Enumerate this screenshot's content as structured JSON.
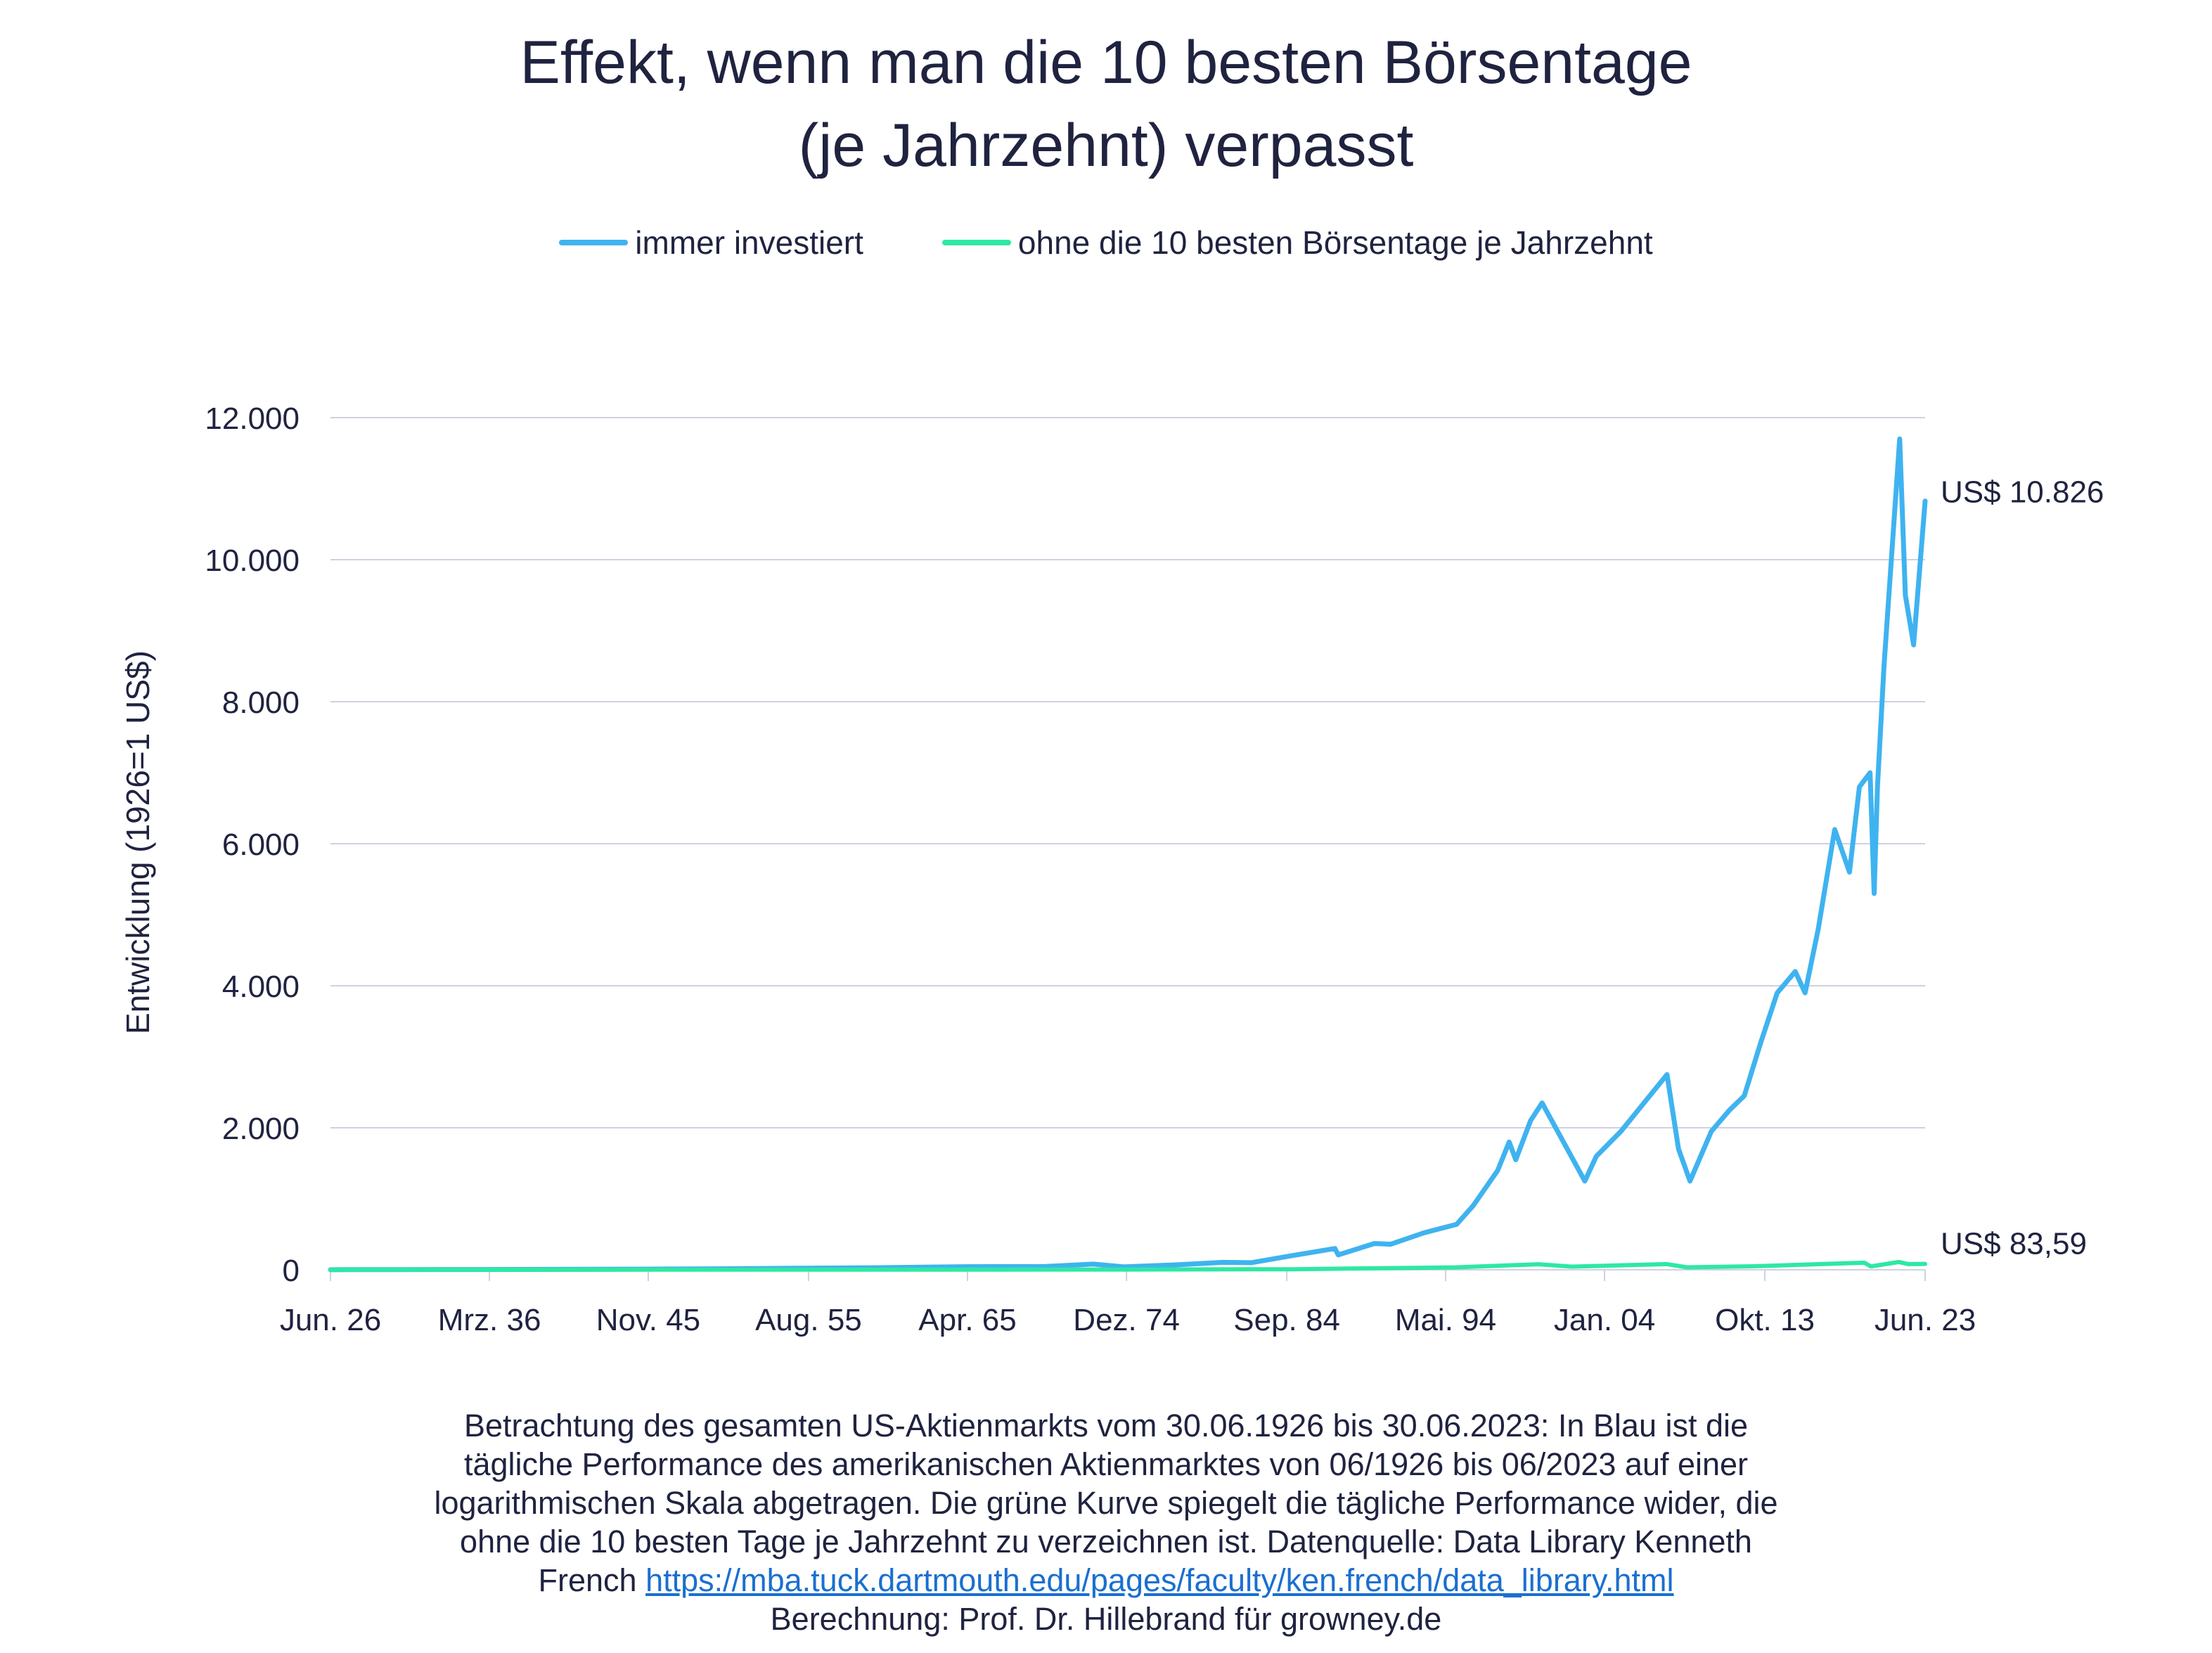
{
  "chart_data": {
    "type": "line",
    "title_lines": [
      "Effekt, wenn man die 10 besten Börsentage",
      "(je Jahrzehnt) verpasst"
    ],
    "ylabel": "Entwicklung (1926=1 US$)",
    "xlabel": "",
    "ylim": [
      0,
      12000
    ],
    "yticks": [
      0,
      2000,
      4000,
      6000,
      8000,
      10000,
      12000
    ],
    "ytick_labels": [
      "0",
      "2.000",
      "4.000",
      "6.000",
      "8.000",
      "10.000",
      "12.000"
    ],
    "xlim": [
      1926.5,
      2023.5
    ],
    "xticks": [
      1926.5,
      1936.17,
      1945.83,
      1955.58,
      1965.25,
      1974.92,
      1984.67,
      1994.33,
      2004.0,
      2013.75,
      2023.5
    ],
    "xtick_labels": [
      "Jun. 26",
      "Mrz. 36",
      "Nov. 45",
      "Aug. 55",
      "Apr. 65",
      "Dez. 74",
      "Sep. 84",
      "Mai. 94",
      "Jan. 04",
      "Okt. 13",
      "Jun. 23"
    ],
    "grid": "horizontal",
    "legend_position": "top",
    "series": [
      {
        "name": "immer investiert",
        "color": "#3fb3f0",
        "end_label": "US$ 10.826",
        "x": [
          1926.5,
          1930,
          1935,
          1940,
          1945,
          1950,
          1955,
          1960,
          1965,
          1970,
          1972.9,
          1974.8,
          1978,
          1980.8,
          1982.5,
          1985,
          1987.6,
          1987.8,
          1990,
          1991,
          1993,
          1995,
          1996,
          1997.5,
          1998.2,
          1998.6,
          1999.5,
          2000.2,
          2001.5,
          2002.8,
          2003.5,
          2005,
          2007.8,
          2008.5,
          2009.2,
          2010.5,
          2011.6,
          2012.5,
          2013.5,
          2014.5,
          2015.6,
          2016.2,
          2017,
          2018,
          2018.9,
          2019.5,
          2020.15,
          2020.4,
          2020.6,
          2021,
          2021.95,
          2022.3,
          2022.8,
          2023.5
        ],
        "values": [
          1,
          3,
          4,
          6,
          9,
          14,
          22,
          30,
          44,
          48,
          80,
          42,
          70,
          105,
          100,
          200,
          300,
          210,
          370,
          360,
          520,
          640,
          900,
          1400,
          1800,
          1550,
          2100,
          2350,
          1800,
          1250,
          1600,
          1950,
          2750,
          1700,
          1250,
          1950,
          2250,
          2450,
          3200,
          3900,
          4200,
          3900,
          4800,
          6200,
          5600,
          6800,
          7000,
          5300,
          6800,
          8500,
          11700,
          9500,
          8800,
          10826
        ]
      },
      {
        "name": "ohne die 10 besten Börsentage je Jahrzehnt",
        "color": "#2ee8a4",
        "end_label": "US$ 83,59",
        "x": [
          1926.5,
          1935,
          1945,
          1955,
          1965,
          1975,
          1985,
          1995,
          2000,
          2002,
          2007.8,
          2009,
          2013,
          2019.8,
          2020.2,
          2021.9,
          2022.5,
          2023.5
        ],
        "values": [
          1,
          1.2,
          1.5,
          2,
          3,
          4,
          8,
          35,
          78,
          45,
          80,
          35,
          50,
          100,
          48,
          110,
          80,
          83.59
        ]
      }
    ]
  },
  "footnote": {
    "line1": "Betrachtung des gesamten US-Aktienmarkts vom 30.06.1926 bis 30.06.2023: In Blau ist die",
    "line2": "tägliche Performance des amerikanischen Aktienmarktes von 06/1926 bis 06/2023 auf einer",
    "line3": "logarithmischen Skala abgetragen. Die grüne Kurve spiegelt die tägliche Performance wider, die",
    "line4": "ohne die 10 besten Tage je Jahrzehnt zu verzeichnen ist. Datenquelle: Data Library Kenneth",
    "line5_prefix": "French ",
    "link": "https://mba.tuck.dartmouth.edu/pages/faculty/ken.french/data_library.html",
    "line6": "Berechnung: Prof. Dr. Hillebrand für growney.de"
  }
}
